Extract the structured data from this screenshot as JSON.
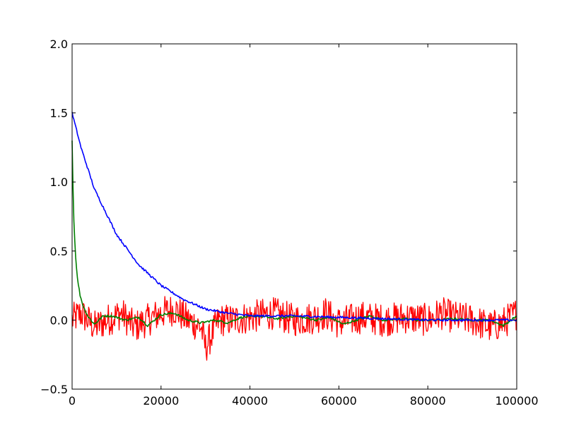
{
  "chart_data": {
    "type": "line",
    "title": "",
    "xlabel": "",
    "ylabel": "",
    "xlim": [
      0,
      100000
    ],
    "ylim": [
      -0.5,
      2.0
    ],
    "x_ticks": [
      0,
      20000,
      40000,
      60000,
      80000,
      100000
    ],
    "x_tick_labels": [
      "0",
      "20000",
      "40000",
      "60000",
      "80000",
      "100000"
    ],
    "y_ticks": [
      -0.5,
      0.0,
      0.5,
      1.0,
      1.5,
      2.0
    ],
    "y_tick_labels": [
      "−0.5",
      "0.0",
      "0.5",
      "1.0",
      "1.5",
      "2.0"
    ],
    "grid": false,
    "legend": "none",
    "series": [
      {
        "color": "#ff0000",
        "style": "noisy",
        "x": [
          0,
          2000,
          5000,
          8000,
          11000,
          14000,
          17000,
          20000,
          23000,
          26000,
          29000,
          30000,
          33000,
          36000,
          40000,
          45000,
          50000,
          55000,
          57000,
          60000,
          65000,
          70000,
          75000,
          80000,
          83000,
          86000,
          90000,
          94000,
          97000,
          100000
        ],
        "y": [
          0.0,
          0.05,
          -0.05,
          0.0,
          0.05,
          -0.05,
          0.0,
          0.05,
          0.08,
          0.0,
          -0.05,
          -0.2,
          0.0,
          0.0,
          0.02,
          0.05,
          0.0,
          0.02,
          0.05,
          -0.02,
          0.02,
          0.0,
          0.02,
          0.0,
          0.05,
          0.02,
          0.0,
          -0.05,
          -0.02,
          0.05
        ],
        "noise_amplitude": 0.12
      },
      {
        "color": "#008000",
        "style": "line",
        "x": [
          0,
          300,
          700,
          1200,
          1800,
          2500,
          3500,
          5000,
          7000,
          9000,
          12000,
          15000,
          17000,
          20000,
          23000,
          26000,
          29000,
          32000,
          35000,
          38000,
          42000,
          46000,
          50000,
          55000,
          58000,
          61000,
          64000,
          67000,
          70000,
          74000,
          78000,
          82000,
          86000,
          90000,
          94000,
          97000,
          100000
        ],
        "y": [
          1.3,
          0.8,
          0.5,
          0.3,
          0.18,
          0.1,
          0.03,
          -0.03,
          0.03,
          0.03,
          0.0,
          0.02,
          -0.04,
          0.04,
          0.05,
          0.0,
          -0.02,
          0.0,
          -0.02,
          0.02,
          0.03,
          0.01,
          0.03,
          0.0,
          0.02,
          -0.03,
          0.0,
          0.03,
          0.0,
          0.01,
          0.0,
          0.0,
          0.01,
          0.0,
          0.0,
          -0.04,
          0.03
        ]
      },
      {
        "color": "#0000ff",
        "style": "line",
        "x": [
          0,
          2000,
          5000,
          10000,
          15000,
          20000,
          25000,
          30000,
          35000,
          40000,
          50000,
          60000,
          70000,
          80000,
          90000,
          100000
        ],
        "y": [
          1.5,
          1.25,
          0.95,
          0.62,
          0.4,
          0.25,
          0.15,
          0.08,
          0.05,
          0.03,
          0.03,
          0.02,
          0.01,
          0.0,
          0.0,
          0.0
        ]
      }
    ]
  }
}
